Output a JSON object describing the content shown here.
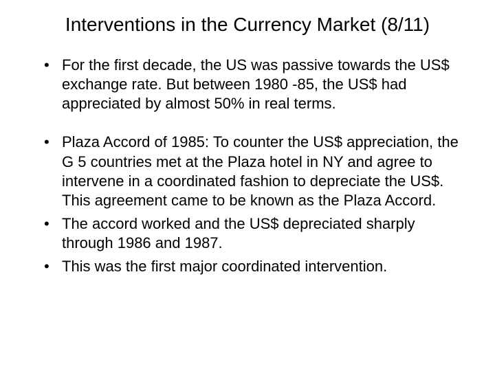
{
  "slide": {
    "title": "Interventions in the Currency Market (8/11)",
    "bullets": [
      "For the first decade, the US was passive towards the US$  exchange rate. But between 1980 -85, the US$ had appreciated by almost 50% in real terms.",
      "Plaza Accord of 1985: To counter the US$ appreciation, the G 5 countries met at the Plaza hotel in NY and agree to intervene in a coordinated fashion to depreciate the US$.  This agreement came to be known as the Plaza Accord.",
      "The accord worked and the US$ depreciated sharply through 1986 and 1987.",
      "This was the first major coordinated intervention."
    ],
    "background_color": "#ffffff",
    "text_color": "#000000",
    "title_fontsize": 28,
    "body_fontsize": 22,
    "font_family": "Arial"
  }
}
